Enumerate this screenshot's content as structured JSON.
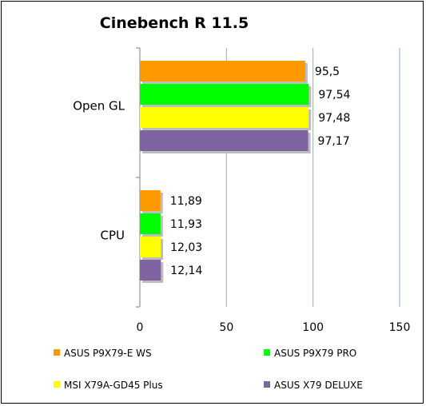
{
  "chart_data": {
    "type": "bar",
    "orientation": "horizontal",
    "title": "Cinebench R 11.5",
    "categories": [
      "Open GL",
      "CPU"
    ],
    "series": [
      {
        "name": "ASUS P9X79-E WS",
        "color": "#ff9900",
        "values": [
          95.5,
          11.89
        ],
        "labels": [
          "95,5",
          "11,89"
        ]
      },
      {
        "name": "ASUS P9X79 PRO",
        "color": "#00ff00",
        "values": [
          97.54,
          11.93
        ],
        "labels": [
          "97,54",
          "11,93"
        ]
      },
      {
        "name": "MSI X79A-GD45 Plus",
        "color": "#ffff00",
        "values": [
          97.48,
          12.03
        ],
        "labels": [
          "97,48",
          "12,03"
        ]
      },
      {
        "name": "ASUS X79 DELUXE",
        "color": "#8064a2",
        "values": [
          97.17,
          12.14
        ],
        "labels": [
          "97,17",
          "12,14"
        ]
      }
    ],
    "xlim": [
      0,
      150
    ],
    "xticks": [
      0,
      50,
      100,
      150
    ],
    "grid": true,
    "legend_position": "bottom"
  }
}
